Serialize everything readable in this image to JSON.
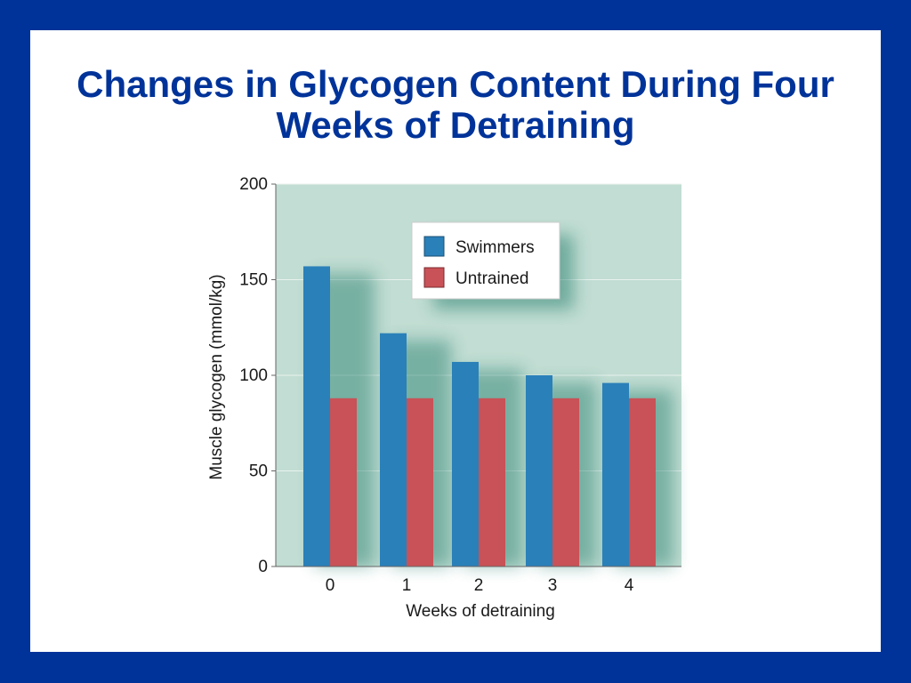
{
  "slide": {
    "title_line1": "Changes in Glycogen Content During Four",
    "title_line2": "Weeks of Detraining"
  },
  "colors": {
    "frame": "#003399",
    "title": "#003399",
    "plot_background": "#c2ddd3",
    "swimmers": "#2a80b9",
    "untrained": "#c85257"
  },
  "chart_data": {
    "type": "bar",
    "xlabel": "Weeks of detraining",
    "ylabel": "Muscle glycogen (mmol/kg)",
    "categories": [
      "0",
      "1",
      "2",
      "3",
      "4"
    ],
    "series": [
      {
        "name": "Swimmers",
        "values": [
          157,
          122,
          107,
          100,
          96
        ]
      },
      {
        "name": "Untrained",
        "values": [
          88,
          88,
          88,
          88,
          88
        ]
      }
    ],
    "ylim": [
      0,
      200
    ],
    "yticks": [
      0,
      50,
      100,
      150,
      200
    ],
    "grid": true,
    "legend_position": "top-center"
  }
}
